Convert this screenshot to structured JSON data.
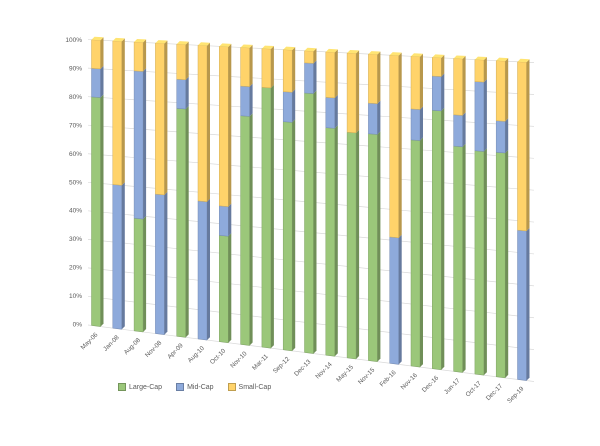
{
  "chart_data": {
    "type": "bar",
    "stacked": true,
    "percent_stacked": true,
    "view": "3d-perspective",
    "categories": [
      "May-06",
      "Jan-08",
      "Aug-08",
      "Nov-08",
      "Apr-09",
      "Aug-10",
      "Oct-10",
      "Nov-10",
      "Mar-11",
      "Sep-12",
      "Dec-13",
      "Nov-14",
      "May-15",
      "Nov-15",
      "Feb-16",
      "Nov-16",
      "Dec-16",
      "Jun-17",
      "Oct-17",
      "Dec-17",
      "Sep-19"
    ],
    "series": [
      {
        "name": "Large-Cap",
        "color": "#9BC77A",
        "values": [
          80,
          0,
          39,
          0,
          78,
          0,
          36,
          77,
          87,
          76,
          86,
          75,
          74,
          74,
          0,
          73,
          83,
          72,
          71,
          71,
          0
        ]
      },
      {
        "name": "Mid-Cap",
        "color": "#8EAADB",
        "values": [
          10,
          50,
          51,
          48,
          10,
          47,
          10,
          10,
          0,
          10,
          10,
          10,
          0,
          10,
          41,
          10,
          11,
          10,
          22,
          10,
          47
        ]
      },
      {
        "name": "Small-Cap",
        "color": "#FFD36A",
        "values": [
          10,
          50,
          10,
          52,
          12,
          53,
          54,
          13,
          13,
          14,
          4,
          15,
          26,
          16,
          59,
          17,
          6,
          18,
          7,
          19,
          53
        ]
      }
    ],
    "yticks": [
      "0%",
      "10%",
      "20%",
      "30%",
      "40%",
      "50%",
      "60%",
      "70%",
      "80%",
      "90%",
      "100%"
    ],
    "ylim": [
      0,
      100
    ],
    "grid": true,
    "legend": "bottom-left",
    "title": "",
    "xlabel": "",
    "ylabel": ""
  }
}
